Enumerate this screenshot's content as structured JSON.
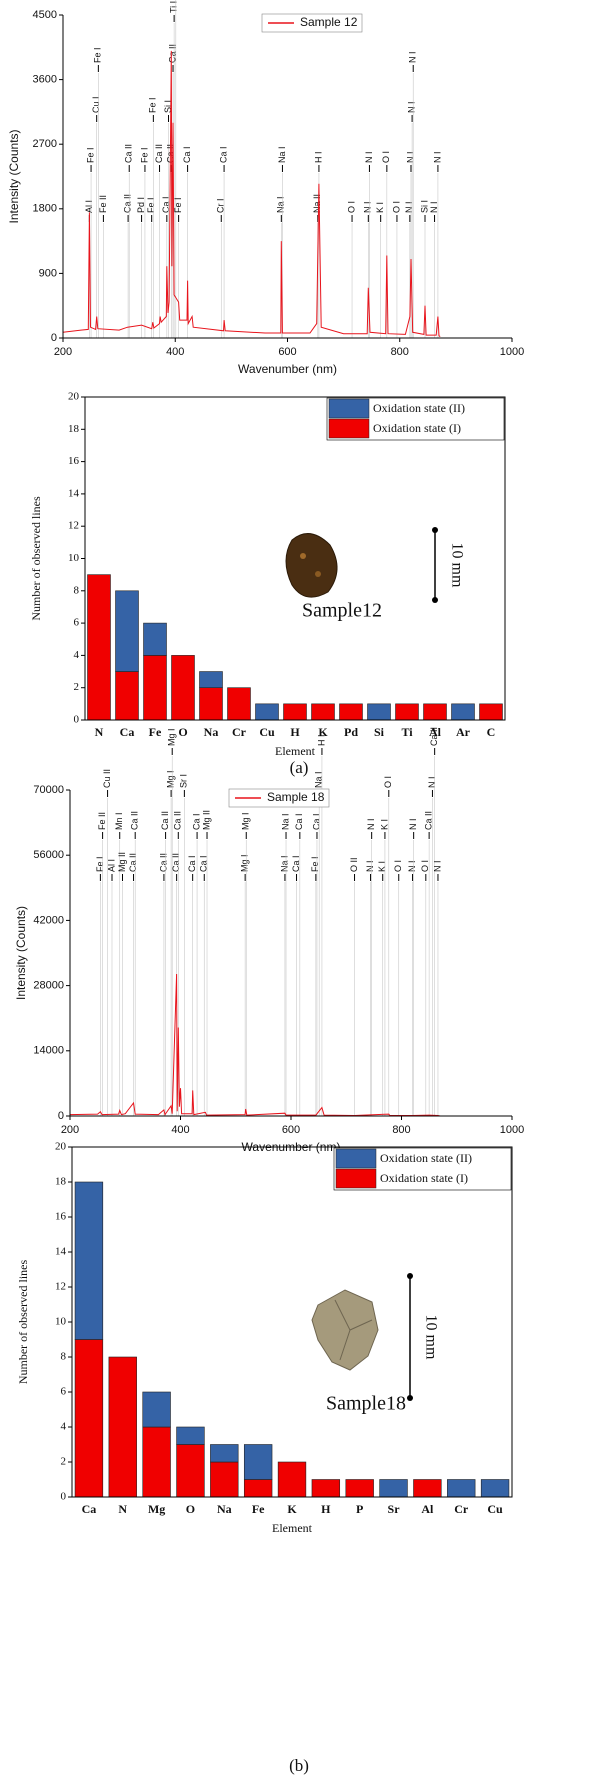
{
  "chart_data": [
    {
      "type": "line",
      "xlabel": "Wavenumber (nm)",
      "ylabel": "Intensity (Counts)",
      "xlim": [
        200,
        1000
      ],
      "ylim": [
        0,
        4500
      ],
      "xticks": [
        200,
        400,
        600,
        800,
        1000
      ],
      "yticks": [
        0,
        900,
        1800,
        2700,
        3600,
        4500
      ],
      "x": [
        200,
        232,
        245,
        247,
        249,
        258,
        260,
        262,
        300,
        315,
        340,
        358,
        360,
        362,
        372,
        373,
        375,
        384,
        385,
        387,
        389,
        393,
        394,
        396,
        398,
        406,
        408,
        421,
        422,
        423,
        430,
        432,
        486,
        487,
        489,
        560,
        588,
        589,
        591,
        640,
        652,
        656,
        660,
        700,
        742,
        744,
        747,
        775,
        777,
        779,
        810,
        818,
        820,
        823,
        843,
        845,
        847,
        865,
        868,
        870,
        872
      ],
      "series": [
        {
          "name": "Sample 12",
          "color": "#e8141c",
          "values": [
            80,
            110,
            120,
            1750,
            150,
            120,
            300,
            130,
            110,
            150,
            180,
            130,
            220,
            140,
            200,
            300,
            220,
            300,
            1000,
            350,
            500,
            4000,
            1000,
            3000,
            600,
            500,
            250,
            250,
            800,
            200,
            300,
            150,
            100,
            250,
            100,
            70,
            70,
            1350,
            70,
            70,
            200,
            2150,
            150,
            60,
            60,
            700,
            80,
            60,
            1150,
            60,
            50,
            300,
            1100,
            80,
            50,
            450,
            40,
            40,
            300,
            30,
            20
          ]
        }
      ],
      "annotations": [
        {
          "x": 247,
          "text": "Al I"
        },
        {
          "x": 250,
          "text": "Fe I"
        },
        {
          "x": 260,
          "text": "Cu I"
        },
        {
          "x": 263,
          "text": "Fe I"
        },
        {
          "x": 272,
          "text": "Fe II"
        },
        {
          "x": 316,
          "text": "Ca II"
        },
        {
          "x": 318,
          "text": "Ca II"
        },
        {
          "x": 340,
          "text": "Pd I"
        },
        {
          "x": 346,
          "text": "Fe I"
        },
        {
          "x": 358,
          "text": "Fe I"
        },
        {
          "x": 361,
          "text": "Fe I"
        },
        {
          "x": 372,
          "text": "Ca II"
        },
        {
          "x": 385,
          "text": "Ca I"
        },
        {
          "x": 388,
          "text": "Si I"
        },
        {
          "x": 393,
          "text": "Ca II"
        },
        {
          "x": 396,
          "text": "Ca II"
        },
        {
          "x": 398,
          "text": "Ti I"
        },
        {
          "x": 401,
          "text": "Ca II"
        },
        {
          "x": 406,
          "text": "Fe I"
        },
        {
          "x": 422,
          "text": "Ca I"
        },
        {
          "x": 482,
          "text": "Cr I"
        },
        {
          "x": 487,
          "text": "Ca I"
        },
        {
          "x": 589,
          "text": "Na I"
        },
        {
          "x": 591,
          "text": "Na I"
        },
        {
          "x": 654,
          "text": "Na II"
        },
        {
          "x": 656,
          "text": "H I"
        },
        {
          "x": 715,
          "text": "O I"
        },
        {
          "x": 744,
          "text": "N I"
        },
        {
          "x": 746,
          "text": "N I"
        },
        {
          "x": 766,
          "text": "K I"
        },
        {
          "x": 777,
          "text": "O I"
        },
        {
          "x": 795,
          "text": "O I"
        },
        {
          "x": 818,
          "text": "N I"
        },
        {
          "x": 820,
          "text": "N I"
        },
        {
          "x": 822,
          "text": "N I"
        },
        {
          "x": 824,
          "text": "N I"
        },
        {
          "x": 845,
          "text": "Si I"
        },
        {
          "x": 862,
          "text": "N I"
        },
        {
          "x": 868,
          "text": "N I"
        }
      ]
    },
    {
      "type": "bar",
      "xlabel": "Element",
      "ylabel": "Number of observed lines",
      "stacked": true,
      "categories": [
        "N",
        "Ca",
        "Fe",
        "O",
        "Na",
        "Cr",
        "Cu",
        "H",
        "K",
        "Pd",
        "Si",
        "Ti",
        "Al",
        "Ar",
        "C"
      ],
      "ylim": [
        0,
        20
      ],
      "yticks": [
        0,
        2,
        4,
        6,
        8,
        10,
        12,
        14,
        16,
        18,
        20
      ],
      "series": [
        {
          "name": "Oxidation state (I)",
          "color": "#f00000",
          "values": [
            9,
            3,
            4,
            4,
            2,
            2,
            0,
            1,
            1,
            1,
            0,
            1,
            1,
            0,
            1
          ]
        },
        {
          "name": "Oxidation state (II)",
          "color": "#3563a6",
          "values": [
            0,
            5,
            2,
            0,
            1,
            0,
            1,
            0,
            0,
            0,
            1,
            0,
            0,
            1,
            0
          ]
        }
      ],
      "inset": {
        "label": "Sample12",
        "scale": "10 mm"
      }
    },
    {
      "type": "line",
      "xlabel": "Wavenumber (nm)",
      "ylabel": "Intensity (Counts)",
      "xlim": [
        200,
        1000
      ],
      "ylim": [
        0,
        70000
      ],
      "xticks": [
        200,
        400,
        600,
        800,
        1000
      ],
      "yticks": [
        0,
        14000,
        28000,
        42000,
        56000,
        70000
      ],
      "x": [
        200,
        250,
        255,
        258,
        288,
        290,
        293,
        300,
        315,
        318,
        360,
        370,
        372,
        383,
        385,
        393,
        394,
        396,
        398,
        400,
        402,
        421,
        422,
        424,
        445,
        447,
        517,
        518,
        520,
        589,
        591,
        645,
        656,
        660,
        715,
        777,
        779,
        820,
        850,
        866,
        870
      ],
      "series": [
        {
          "name": "Sample 18",
          "color": "#e8141c",
          "values": [
            300,
            400,
            900,
            300,
            400,
            1200,
            300,
            500,
            2800,
            400,
            300,
            1300,
            300,
            2200,
            500,
            30500,
            1000,
            19000,
            2000,
            6000,
            500,
            500,
            5500,
            300,
            800,
            200,
            300,
            1500,
            200,
            600,
            200,
            200,
            1800,
            200,
            100,
            400,
            100,
            100,
            200,
            100,
            0
          ]
        }
      ],
      "annotations": [
        {
          "x": 255,
          "text": "Fe I"
        },
        {
          "x": 259,
          "text": "Fe II"
        },
        {
          "x": 268,
          "text": "Cu II"
        },
        {
          "x": 276,
          "text": "Al I"
        },
        {
          "x": 290,
          "text": "Mn I"
        },
        {
          "x": 295,
          "text": "Mg II"
        },
        {
          "x": 315,
          "text": "Ca II"
        },
        {
          "x": 318,
          "text": "Ca II"
        },
        {
          "x": 370,
          "text": "Ca II"
        },
        {
          "x": 373,
          "text": "Ca II"
        },
        {
          "x": 383,
          "text": "Mg I"
        },
        {
          "x": 385,
          "text": "Mg I"
        },
        {
          "x": 393,
          "text": "Ca II"
        },
        {
          "x": 396,
          "text": "Ca II"
        },
        {
          "x": 407,
          "text": "Sr I"
        },
        {
          "x": 422,
          "text": "Ca I"
        },
        {
          "x": 430,
          "text": "Ca I"
        },
        {
          "x": 443,
          "text": "Ca I"
        },
        {
          "x": 448,
          "text": "Mg II"
        },
        {
          "x": 517,
          "text": "Mg I"
        },
        {
          "x": 519,
          "text": "Mg I"
        },
        {
          "x": 589,
          "text": "Na I"
        },
        {
          "x": 591,
          "text": "Na I"
        },
        {
          "x": 610,
          "text": "Ca I"
        },
        {
          "x": 616,
          "text": "Ca I"
        },
        {
          "x": 645,
          "text": "Fe I"
        },
        {
          "x": 647,
          "text": "Ca I"
        },
        {
          "x": 651,
          "text": "Na I"
        },
        {
          "x": 656,
          "text": "H I"
        },
        {
          "x": 715,
          "text": "O II"
        },
        {
          "x": 744,
          "text": "N I"
        },
        {
          "x": 746,
          "text": "N I"
        },
        {
          "x": 766,
          "text": "K I"
        },
        {
          "x": 770,
          "text": "K I"
        },
        {
          "x": 777,
          "text": "O I"
        },
        {
          "x": 795,
          "text": "O I"
        },
        {
          "x": 820,
          "text": "N I"
        },
        {
          "x": 822,
          "text": "N I"
        },
        {
          "x": 844,
          "text": "O I"
        },
        {
          "x": 850,
          "text": "Ca II"
        },
        {
          "x": 856,
          "text": "N I"
        },
        {
          "x": 860,
          "text": "Ca II"
        },
        {
          "x": 866,
          "text": "N I"
        }
      ]
    },
    {
      "type": "bar",
      "xlabel": "Element",
      "ylabel": "Number of observed lines",
      "stacked": true,
      "categories": [
        "Ca",
        "N",
        "Mg",
        "O",
        "Na",
        "Fe",
        "K",
        "H",
        "P",
        "Sr",
        "Al",
        "Cr",
        "Cu"
      ],
      "ylim": [
        0,
        20
      ],
      "yticks": [
        0,
        2,
        4,
        6,
        8,
        10,
        12,
        14,
        16,
        18,
        20
      ],
      "series": [
        {
          "name": "Oxidation state (I)",
          "color": "#f00000",
          "values": [
            9,
            8,
            4,
            3,
            2,
            1,
            2,
            1,
            1,
            0,
            1,
            0,
            0
          ]
        },
        {
          "name": "Oxidation state (II)",
          "color": "#3563a6",
          "values": [
            9,
            0,
            2,
            1,
            1,
            2,
            0,
            0,
            0,
            1,
            0,
            1,
            1
          ]
        }
      ],
      "inset": {
        "label": "Sample18",
        "scale": "10 mm"
      }
    }
  ],
  "captions": [
    "(a)",
    "(b)"
  ]
}
